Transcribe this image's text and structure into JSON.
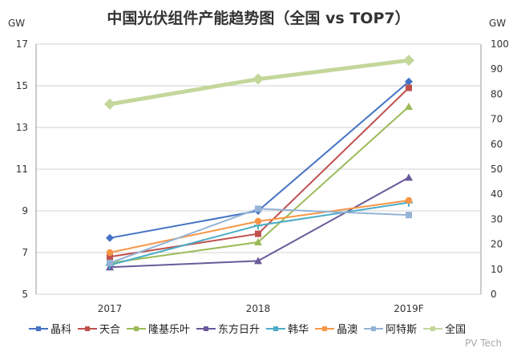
{
  "chart_data": {
    "type": "line",
    "title": "中国光伏组件产能趋势图（全国 vs TOP7）",
    "ylabel_left": "GW",
    "ylabel_right": "GW",
    "ylim_left": [
      5,
      17
    ],
    "yticks_left": [
      5,
      7,
      9,
      11,
      13,
      15,
      17
    ],
    "ylim_right": [
      0,
      100
    ],
    "yticks_right": [
      0,
      10,
      20,
      30,
      40,
      50,
      60,
      70,
      80,
      90,
      100
    ],
    "categories": [
      "2017",
      "2018",
      "2019F"
    ],
    "grid": true,
    "legend": "bottom",
    "series": [
      {
        "name": "晶科",
        "axis": "left",
        "color": "#4472c4",
        "marker": "diamond",
        "values": [
          7.7,
          9.0,
          15.2
        ]
      },
      {
        "name": "天合",
        "axis": "left",
        "color": "#c0504d",
        "marker": "square",
        "values": [
          6.8,
          7.9,
          14.9
        ]
      },
      {
        "name": "隆基乐叶",
        "axis": "left",
        "color": "#9bbb59",
        "marker": "triangle",
        "values": [
          6.5,
          7.5,
          14.0
        ]
      },
      {
        "name": "东方日升",
        "axis": "left",
        "color": "#6a5a9a",
        "marker": "triangle",
        "values": [
          6.3,
          6.6,
          10.6
        ]
      },
      {
        "name": "韩华",
        "axis": "left",
        "color": "#4bacc6",
        "marker": "cross",
        "values": [
          6.4,
          8.3,
          9.4
        ]
      },
      {
        "name": "晶澳",
        "axis": "left",
        "color": "#f79646",
        "marker": "circle",
        "values": [
          7.0,
          8.5,
          9.5
        ]
      },
      {
        "name": "阿特斯",
        "axis": "left",
        "color": "#95b3d7",
        "marker": "square",
        "values": [
          6.5,
          9.1,
          8.8
        ]
      },
      {
        "name": "全国",
        "axis": "right",
        "color": "#c4d79b",
        "marker": "diamond",
        "values": [
          76,
          86,
          93.5
        ]
      }
    ]
  },
  "watermark": "PV Tech"
}
